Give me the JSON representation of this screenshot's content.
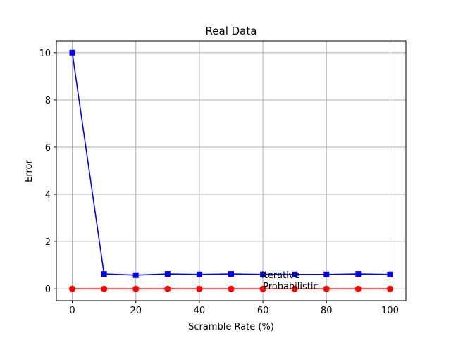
{
  "chart_data": {
    "type": "line",
    "title": "Real Data",
    "xlabel": "Scramble Rate (%)",
    "ylabel": "Error",
    "xlim": [
      -5,
      105
    ],
    "ylim": [
      -0.5,
      10.5
    ],
    "xticks": [
      0,
      20,
      40,
      60,
      80,
      100
    ],
    "yticks": [
      0,
      2,
      4,
      6,
      8,
      10
    ],
    "grid": true,
    "x": [
      0,
      10,
      20,
      30,
      40,
      50,
      60,
      70,
      80,
      90,
      100
    ],
    "series": [
      {
        "name": "Iterative",
        "color": "#0000ff",
        "marker": "square",
        "values": [
          10.0,
          0.63,
          0.58,
          0.63,
          0.61,
          0.63,
          0.61,
          0.61,
          0.61,
          0.63,
          0.61
        ]
      },
      {
        "name": "Probabilistic",
        "color": "#ff0000",
        "marker": "circle",
        "values": [
          0,
          0,
          0,
          0,
          0,
          0,
          0,
          0,
          0,
          0,
          0
        ]
      }
    ],
    "annotations": [
      {
        "text": "Iterative",
        "x": 59.5,
        "y": 0.61
      },
      {
        "text": "Probabilistic",
        "x": 60,
        "y": 0.12
      }
    ]
  }
}
